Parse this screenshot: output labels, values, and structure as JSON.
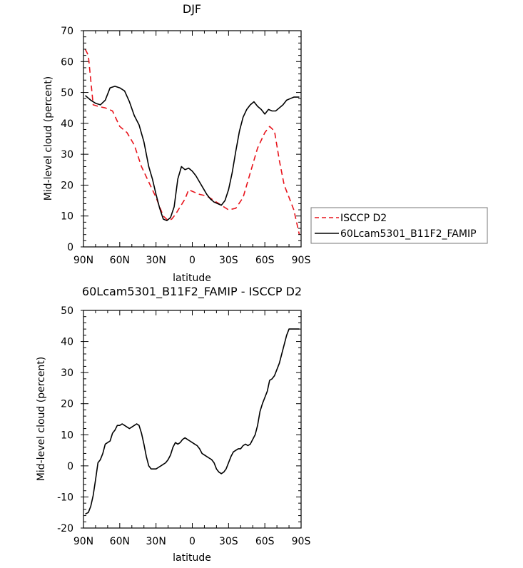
{
  "chart_data": [
    {
      "type": "line",
      "title": "DJF",
      "xlabel": "latitude",
      "ylabel": "Mid-level cloud (percent)",
      "xlim": [
        90,
        -90
      ],
      "ylim": [
        0,
        70
      ],
      "xticks": [
        90,
        60,
        30,
        0,
        -30,
        -60,
        -90
      ],
      "xtick_labels": [
        "90N",
        "60N",
        "30N",
        "0",
        "30S",
        "60S",
        "90S"
      ],
      "yticks": [
        0,
        10,
        20,
        30,
        40,
        50,
        60,
        70
      ],
      "ytick_labels": [
        "0",
        "10",
        "20",
        "30",
        "40",
        "50",
        "60",
        "70"
      ],
      "legend": "right",
      "series": [
        {
          "name": "ISCCP D2",
          "color": "#e8141c",
          "dash": "dashed",
          "x": [
            88.5,
            86,
            82,
            78,
            72,
            66,
            60,
            54,
            48,
            42,
            36,
            30,
            24,
            20,
            17,
            14,
            10,
            6,
            3,
            0,
            -3,
            -6,
            -12,
            -18,
            -24,
            -30,
            -36,
            -42,
            -48,
            -54,
            -60,
            -64,
            -68,
            -72,
            -76,
            -80,
            -84,
            -88.5
          ],
          "values": [
            64,
            62,
            46,
            45.5,
            45,
            44,
            39,
            37,
            33,
            26,
            21,
            16,
            10,
            8.5,
            9,
            10.5,
            13,
            15.5,
            18.5,
            18,
            17.5,
            17,
            16.5,
            15,
            13.5,
            12,
            12.5,
            16,
            24,
            32,
            37,
            39,
            37.5,
            28,
            20,
            16,
            12,
            4
          ]
        },
        {
          "name": "60Lcam5301_B11F2_FAMIP",
          "color": "#000000",
          "dash": "solid",
          "x": [
            88.5,
            84,
            80,
            76,
            72,
            68,
            64,
            60,
            56,
            52,
            48,
            44,
            40,
            36,
            33,
            30,
            27,
            24,
            21,
            18,
            15,
            12,
            9,
            6,
            3,
            0,
            -3,
            -6,
            -9,
            -12,
            -15,
            -18,
            -21,
            -24,
            -27,
            -30,
            -33,
            -36,
            -39,
            -42,
            -45,
            -48,
            -51,
            -54,
            -57,
            -60,
            -63,
            -66,
            -69,
            -72,
            -75,
            -78,
            -81,
            -84,
            -87,
            -88.5
          ],
          "values": [
            49,
            47.5,
            46.5,
            46,
            47.5,
            51.5,
            52,
            51.5,
            50.5,
            47,
            42.5,
            39.5,
            34,
            26,
            22,
            17,
            12.5,
            9,
            8.5,
            9.5,
            13,
            22,
            26,
            25,
            25.5,
            24.5,
            23,
            21,
            19,
            17,
            15.5,
            14.5,
            14,
            13.5,
            15,
            18.5,
            24,
            31,
            37.5,
            42,
            44.5,
            46,
            47,
            45.5,
            44.5,
            43,
            44.5,
            44,
            44,
            45,
            46,
            47.5,
            48,
            48.5,
            48.5,
            48.5
          ]
        }
      ]
    },
    {
      "type": "line",
      "title": "60Lcam5301_B11F2_FAMIP - ISCCP D2",
      "xlabel": "latitude",
      "ylabel": "Mid-level cloud (percent)",
      "xlim": [
        90,
        -90
      ],
      "ylim": [
        -20,
        50
      ],
      "xticks": [
        90,
        60,
        30,
        0,
        -30,
        -60,
        -90
      ],
      "xtick_labels": [
        "90N",
        "60N",
        "30N",
        "0",
        "30S",
        "60S",
        "90S"
      ],
      "yticks": [
        -20,
        -10,
        0,
        10,
        20,
        30,
        40,
        50
      ],
      "ytick_labels": [
        "-20",
        "-10",
        "0",
        "10",
        "20",
        "30",
        "40",
        "50"
      ],
      "series": [
        {
          "color": "#000000",
          "dash": "solid",
          "x": [
            88.5,
            86,
            84,
            82,
            80,
            78,
            76,
            74,
            72,
            70,
            68,
            66,
            64,
            62,
            60,
            58,
            56,
            54,
            52,
            50,
            48,
            46,
            44,
            42,
            40,
            38,
            36,
            34,
            32,
            30,
            28,
            26,
            24,
            22,
            20,
            18,
            16,
            14,
            12,
            10,
            8,
            6,
            4,
            2,
            0,
            -2,
            -4,
            -6,
            -8,
            -10,
            -12,
            -14,
            -16,
            -18,
            -20,
            -22,
            -24,
            -26,
            -28,
            -30,
            -32,
            -34,
            -36,
            -38,
            -40,
            -42,
            -44,
            -46,
            -48,
            -50,
            -52,
            -54,
            -56,
            -58,
            -60,
            -62,
            -64,
            -66,
            -68,
            -70,
            -72,
            -74,
            -76,
            -78,
            -80,
            -82,
            -84,
            -86,
            -88.5
          ],
          "values": [
            -15.5,
            -15,
            -13,
            -9.5,
            -4.5,
            1,
            2,
            4,
            7,
            7.5,
            8,
            10.5,
            11.5,
            13,
            13,
            13.5,
            13,
            12.5,
            12,
            12.5,
            13,
            13.5,
            13,
            10.5,
            7,
            3,
            0,
            -1,
            -1,
            -1,
            -0.5,
            0,
            0.5,
            1,
            2,
            3.5,
            6,
            7.5,
            7,
            7.5,
            8.5,
            9,
            8.5,
            8,
            7.5,
            7,
            6.5,
            5.5,
            4,
            3.5,
            3,
            2.5,
            2,
            1,
            -1,
            -2,
            -2.5,
            -2,
            -1,
            1,
            3,
            4.5,
            5,
            5.5,
            5.5,
            6.5,
            7,
            6.5,
            7,
            8.5,
            10,
            13,
            17.5,
            20,
            22,
            24,
            27.5,
            28,
            29,
            31,
            33,
            36,
            39,
            42,
            44,
            44,
            44,
            44,
            44
          ]
        }
      ]
    }
  ]
}
